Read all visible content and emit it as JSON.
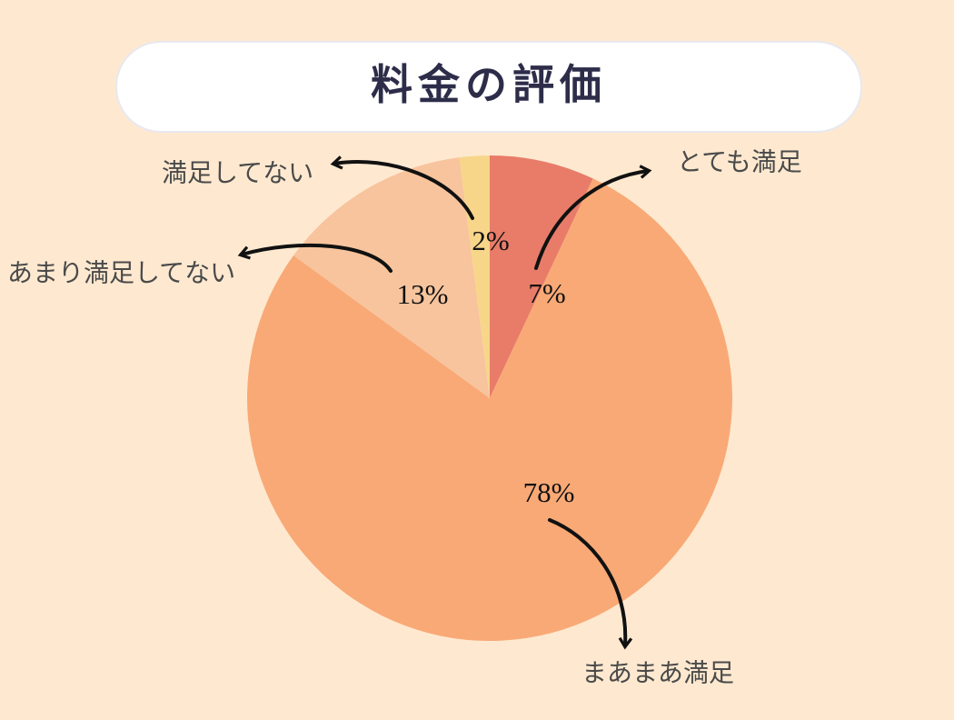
{
  "chart_data": {
    "type": "pie",
    "title": "料金の評価",
    "categories": [
      "とても満足",
      "まあまあ満足",
      "あまり満足してない",
      "満足してない"
    ],
    "values": [
      7,
      78,
      13,
      2
    ],
    "value_labels": [
      "7%",
      "78%",
      "13%",
      "2%"
    ],
    "colors": [
      "#e87c69",
      "#f9a976",
      "#f7c49d",
      "#f7d68a"
    ]
  }
}
